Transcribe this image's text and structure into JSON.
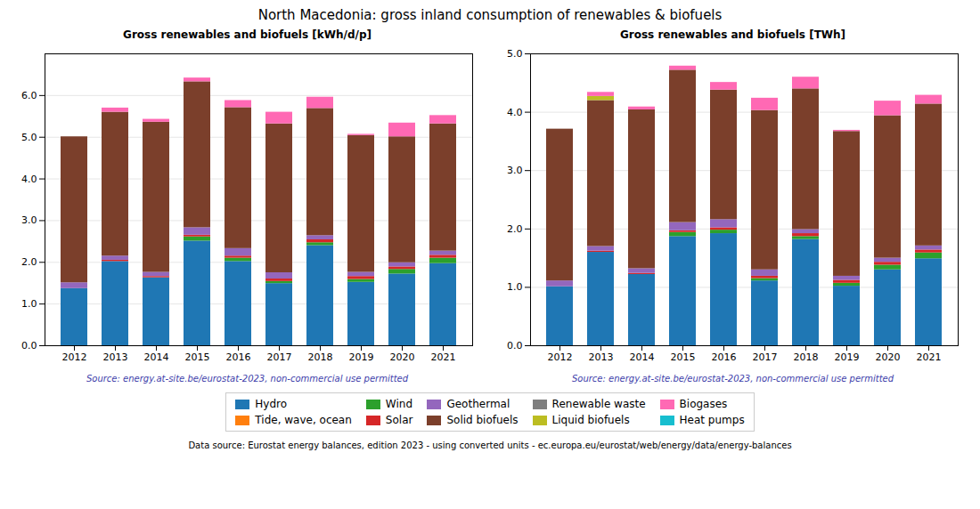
{
  "title": "North Macedonia: gross inland consumption of renewables & biofuels",
  "annotations": [
    "Data source: Eurostat energy balances, edition 2023 - using converted units - ec.europa.eu/eurostat/web/energy/data/energy-balances"
  ],
  "chart_data": [
    {
      "type": "bar",
      "stacked": true,
      "title": "Gross renewables and biofuels [kWh/d/p]",
      "categories": [
        2012,
        2013,
        2014,
        2015,
        2016,
        2017,
        2018,
        2019,
        2020,
        2021
      ],
      "series": [
        {
          "name": "Hydro",
          "color": "#1f77b4",
          "values": [
            1.37,
            2.02,
            1.63,
            2.51,
            2.02,
            1.49,
            2.4,
            1.52,
            1.72,
            1.97
          ]
        },
        {
          "name": "Tide, wave, ocean",
          "color": "#ff7f0e",
          "values": [
            0.0,
            0.0,
            0.0,
            0.0,
            0.0,
            0.0,
            0.0,
            0.0,
            0.0,
            0.0
          ]
        },
        {
          "name": "Wind",
          "color": "#2ca02c",
          "values": [
            0.0,
            0.0,
            0.0,
            0.1,
            0.08,
            0.05,
            0.07,
            0.07,
            0.11,
            0.13
          ]
        },
        {
          "name": "Solar",
          "color": "#d62728",
          "values": [
            0.0,
            0.03,
            0.03,
            0.04,
            0.05,
            0.06,
            0.07,
            0.07,
            0.06,
            0.07
          ]
        },
        {
          "name": "Geothermal",
          "color": "#9467bd",
          "values": [
            0.14,
            0.1,
            0.1,
            0.18,
            0.18,
            0.15,
            0.1,
            0.1,
            0.1,
            0.1
          ]
        },
        {
          "name": "Solid biofuels",
          "color": "#7B3F2B",
          "values": [
            3.5,
            3.45,
            3.6,
            3.5,
            3.38,
            3.57,
            3.05,
            3.28,
            3.02,
            3.05
          ]
        },
        {
          "name": "Renewable waste",
          "color": "#7f7f7f",
          "values": [
            0.0,
            0.0,
            0.0,
            0.0,
            0.0,
            0.0,
            0.0,
            0.0,
            0.0,
            0.0
          ]
        },
        {
          "name": "Liquid biofuels",
          "color": "#bcbd22",
          "values": [
            0.0,
            0.0,
            0.0,
            0.0,
            0.0,
            0.0,
            0.0,
            0.0,
            0.0,
            0.0
          ]
        },
        {
          "name": "Biogases",
          "color": "#ff69b4",
          "values": [
            0.0,
            0.1,
            0.07,
            0.09,
            0.17,
            0.28,
            0.27,
            0.03,
            0.33,
            0.2
          ]
        },
        {
          "name": "Heat pumps",
          "color": "#17becf",
          "values": [
            0.0,
            0.0,
            0.0,
            0.0,
            0.0,
            0.0,
            0.0,
            0.0,
            0.0,
            0.0
          ]
        }
      ],
      "ylim": [
        0,
        7
      ],
      "yticks": [
        0,
        1,
        2,
        3,
        4,
        5,
        6
      ],
      "grid": true,
      "legend": "bottom",
      "annotations": [
        "Source: energy.at-site.be/eurostat-2023, non-commercial use permitted"
      ]
    },
    {
      "type": "bar",
      "stacked": true,
      "title": "Gross renewables and biofuels [TWh]",
      "categories": [
        2012,
        2013,
        2014,
        2015,
        2016,
        2017,
        2018,
        2019,
        2020,
        2021
      ],
      "series": [
        {
          "name": "Hydro",
          "color": "#1f77b4",
          "values": [
            1.01,
            1.6,
            1.22,
            1.87,
            1.92,
            1.11,
            1.82,
            1.02,
            1.3,
            1.49
          ]
        },
        {
          "name": "Tide, wave, ocean",
          "color": "#ff7f0e",
          "values": [
            0.0,
            0.0,
            0.0,
            0.0,
            0.0,
            0.0,
            0.0,
            0.0,
            0.0,
            0.0
          ]
        },
        {
          "name": "Wind",
          "color": "#2ca02c",
          "values": [
            0.0,
            0.0,
            0.0,
            0.07,
            0.06,
            0.04,
            0.05,
            0.05,
            0.08,
            0.1
          ]
        },
        {
          "name": "Solar",
          "color": "#d62728",
          "values": [
            0.0,
            0.02,
            0.02,
            0.03,
            0.04,
            0.04,
            0.05,
            0.05,
            0.05,
            0.05
          ]
        },
        {
          "name": "Geothermal",
          "color": "#9467bd",
          "values": [
            0.1,
            0.08,
            0.08,
            0.14,
            0.14,
            0.11,
            0.07,
            0.07,
            0.07,
            0.07
          ]
        },
        {
          "name": "Solid biofuels",
          "color": "#7B3F2B",
          "values": [
            2.6,
            2.5,
            2.72,
            2.61,
            2.22,
            2.73,
            2.41,
            2.48,
            2.44,
            2.43
          ]
        },
        {
          "name": "Renewable waste",
          "color": "#7f7f7f",
          "values": [
            0.0,
            0.0,
            0.0,
            0.0,
            0.0,
            0.0,
            0.0,
            0.0,
            0.0,
            0.0
          ]
        },
        {
          "name": "Liquid biofuels",
          "color": "#bcbd22",
          "values": [
            0.0,
            0.07,
            0.0,
            0.0,
            0.0,
            0.0,
            0.0,
            0.0,
            0.0,
            0.0
          ]
        },
        {
          "name": "Biogases",
          "color": "#ff69b4",
          "values": [
            0.0,
            0.07,
            0.05,
            0.07,
            0.13,
            0.21,
            0.2,
            0.02,
            0.25,
            0.15
          ]
        },
        {
          "name": "Heat pumps",
          "color": "#17becf",
          "values": [
            0.0,
            0.0,
            0.0,
            0.0,
            0.0,
            0.0,
            0.0,
            0.0,
            0.0,
            0.0
          ]
        }
      ],
      "ylim": [
        0,
        5
      ],
      "yticks": [
        0,
        1,
        2,
        3,
        4,
        5
      ],
      "grid": true,
      "legend": "bottom",
      "annotations": [
        "Source: energy.at-site.be/eurostat-2023, non-commercial use permitted"
      ]
    }
  ]
}
